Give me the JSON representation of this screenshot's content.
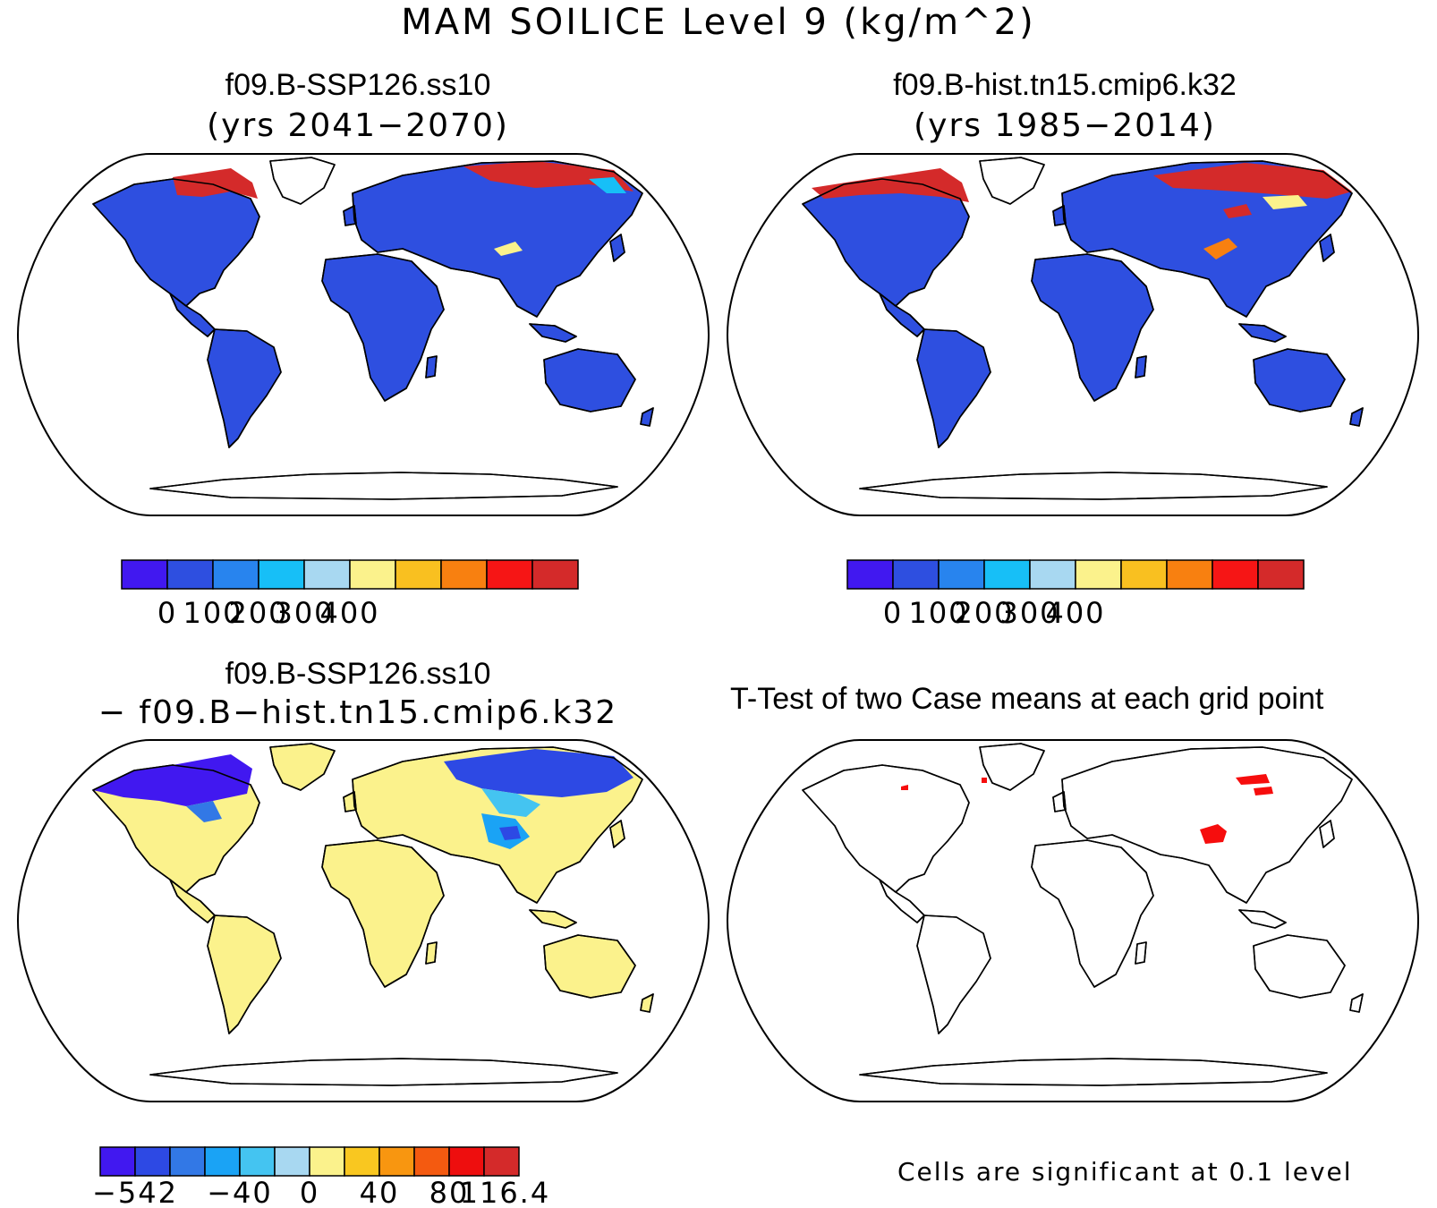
{
  "title": "MAM SOILICE Level 9 (kg/m^2)",
  "colors": {
    "abs_scale": [
      "#4118f0",
      "#2e4fe0",
      "#2884ee",
      "#17bff7",
      "#a8d8f1",
      "#fbf28c",
      "#f9c020",
      "#f88010",
      "#f61515",
      "#d42a2a"
    ],
    "diff_scale": [
      "#4118f0",
      "#2d49e4",
      "#3278e6",
      "#1aa3f5",
      "#44c4f1",
      "#a8d8f1",
      "#fbf28c",
      "#f9c720",
      "#f89610",
      "#f45a10",
      "#ee0e0e",
      "#d42a2a"
    ],
    "land_base": "#2e4fe0",
    "diff_land": "#fbf28c",
    "significant": "#f60d0d",
    "coast": "#000000"
  },
  "panels": {
    "ssp": {
      "title": "f09.B-SSP126.ss10",
      "subtitle": "(yrs 2041−2070)",
      "colorbar_labels": [
        "0",
        "100",
        "200",
        "300",
        "400"
      ]
    },
    "hist": {
      "title": "f09.B-hist.tn15.cmip6.k32",
      "subtitle": "(yrs 1985−2014)",
      "colorbar_labels": [
        "0",
        "100",
        "200",
        "300",
        "400"
      ]
    },
    "diff": {
      "title": "f09.B-SSP126.ss10",
      "subtitle": "− f09.B−hist.tn15.cmip6.k32",
      "colorbar_labels": [
        "−542",
        "−40",
        "0",
        "40",
        "80",
        "116.4"
      ]
    },
    "ttest": {
      "title": "T-Test of two Case means at each grid point",
      "note": "Cells are significant at 0.1 level"
    }
  }
}
